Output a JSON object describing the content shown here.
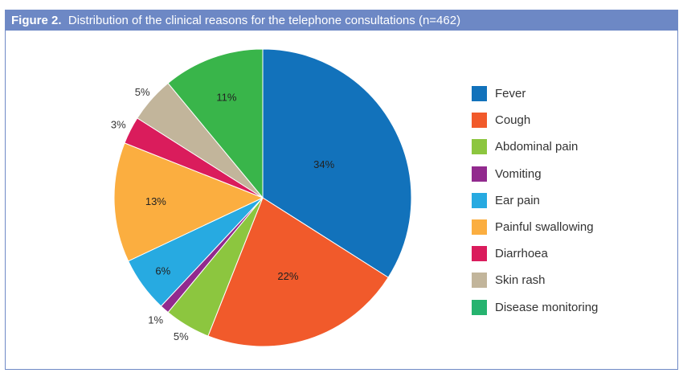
{
  "chart_data": {
    "type": "pie",
    "title_prefix": "Figure 2.",
    "title": "Distribution of the clinical reasons for the telephone consultations (n=462)",
    "unit": "%",
    "legend_position": "right",
    "slices": [
      {
        "label": "Fever",
        "value": 34,
        "display": "34%",
        "color": "#1272bb",
        "legend_color": "#1272bb"
      },
      {
        "label": "Cough",
        "value": 22,
        "display": "22%",
        "color": "#f15a2b",
        "legend_color": "#f15a2b"
      },
      {
        "label": "Abdominal pain",
        "value": 5,
        "display": "5%",
        "color": "#8cc63f",
        "legend_color": "#8cc63f"
      },
      {
        "label": "Vomiting",
        "value": 1,
        "display": "1%",
        "color": "#922a8e",
        "legend_color": "#922a8e"
      },
      {
        "label": "Ear pain",
        "value": 6,
        "display": "6%",
        "color": "#27aae1",
        "legend_color": "#27aae1"
      },
      {
        "label": "Painful swallowing",
        "value": 13,
        "display": "13%",
        "color": "#fbae40",
        "legend_color": "#fbae40"
      },
      {
        "label": "Diarrhoea",
        "value": 3,
        "display": "3%",
        "color": "#da1c5c",
        "legend_color": "#da1c5c"
      },
      {
        "label": "Skin rash",
        "value": 5,
        "display": "5%",
        "color": "#c2b59b",
        "legend_color": "#c2b59b"
      },
      {
        "label": "Disease monitoring",
        "value": 11,
        "display": "11%",
        "color": "#39b54a",
        "legend_color": "#26b36f"
      }
    ]
  }
}
